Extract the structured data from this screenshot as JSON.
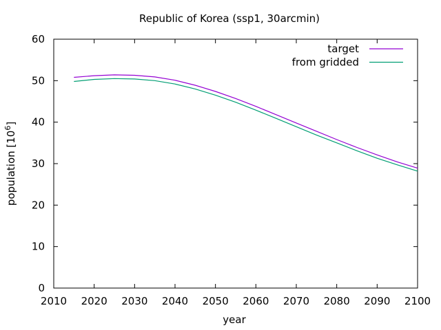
{
  "chart_data": {
    "type": "line",
    "title": "Republic of Korea (ssp1, 30arcmin)",
    "xlabel": "year",
    "ylabel_text": "population [10",
    "ylabel_exponent": "6",
    "ylabel_close": "]",
    "xlim": [
      2010,
      2100
    ],
    "ylim": [
      0,
      60
    ],
    "xticks": [
      2010,
      2020,
      2030,
      2040,
      2050,
      2060,
      2070,
      2080,
      2090,
      2100
    ],
    "yticks": [
      0,
      10,
      20,
      30,
      40,
      50,
      60
    ],
    "grid": false,
    "legend_position": "top-right",
    "x": [
      2015,
      2020,
      2025,
      2030,
      2035,
      2040,
      2045,
      2050,
      2055,
      2060,
      2065,
      2070,
      2075,
      2080,
      2085,
      2090,
      2095,
      2100
    ],
    "series": [
      {
        "name": "target",
        "color": "#9400d3",
        "values": [
          50.8,
          51.2,
          51.4,
          51.3,
          50.9,
          50.1,
          48.9,
          47.4,
          45.7,
          43.8,
          41.8,
          39.8,
          37.8,
          35.8,
          33.9,
          32.1,
          30.4,
          28.9
        ]
      },
      {
        "name": "from gridded",
        "color": "#009e73",
        "values": [
          49.8,
          50.3,
          50.5,
          50.4,
          50.0,
          49.2,
          48.0,
          46.5,
          44.8,
          42.9,
          40.9,
          38.9,
          36.9,
          35.0,
          33.1,
          31.3,
          29.7,
          28.2
        ]
      }
    ]
  }
}
